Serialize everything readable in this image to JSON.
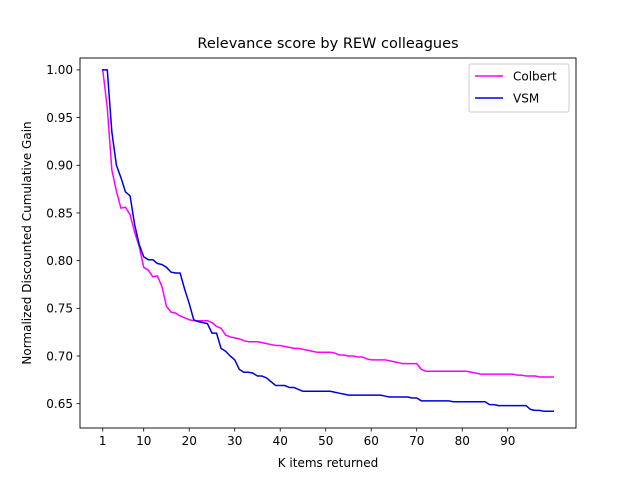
{
  "chart_data": {
    "type": "line",
    "title": "Relevance score by REW colleagues",
    "xlabel": "K items returned",
    "ylabel": "Normalized Discounted Cumulative Gain",
    "xlim": [
      -4,
      105
    ],
    "ylim": [
      0.6245,
      1.0125
    ],
    "x_ticks": [
      1,
      10,
      20,
      30,
      40,
      50,
      60,
      70,
      80,
      90
    ],
    "y_ticks": [
      0.65,
      0.7,
      0.75,
      0.8,
      0.85,
      0.9,
      0.95,
      1.0
    ],
    "y_tick_labels": [
      "0.65",
      "0.70",
      "0.75",
      "0.80",
      "0.85",
      "0.90",
      "0.95",
      "1.00"
    ],
    "grid": false,
    "legend_position": "top-right",
    "series": [
      {
        "name": "Colbert",
        "color": "#ff00ff",
        "points": [
          [
            1,
            1.0
          ],
          [
            2,
            0.96
          ],
          [
            3,
            0.895
          ],
          [
            4,
            0.873
          ],
          [
            5,
            0.855
          ],
          [
            6,
            0.856
          ],
          [
            7,
            0.848
          ],
          [
            8,
            0.83
          ],
          [
            9,
            0.815
          ],
          [
            10,
            0.793
          ],
          [
            11,
            0.79
          ],
          [
            12,
            0.783
          ],
          [
            13,
            0.784
          ],
          [
            14,
            0.773
          ],
          [
            15,
            0.752
          ],
          [
            16,
            0.746
          ],
          [
            17,
            0.745
          ],
          [
            18,
            0.742
          ],
          [
            19,
            0.74
          ],
          [
            20,
            0.738
          ],
          [
            21,
            0.737
          ],
          [
            22,
            0.737
          ],
          [
            23,
            0.737
          ],
          [
            24,
            0.737
          ],
          [
            25,
            0.735
          ],
          [
            26,
            0.731
          ],
          [
            27,
            0.729
          ],
          [
            28,
            0.722
          ],
          [
            29,
            0.72
          ],
          [
            30,
            0.719
          ],
          [
            31,
            0.718
          ],
          [
            32,
            0.716
          ],
          [
            33,
            0.715
          ],
          [
            34,
            0.715
          ],
          [
            35,
            0.715
          ],
          [
            36,
            0.714
          ],
          [
            37,
            0.713
          ],
          [
            38,
            0.712
          ],
          [
            39,
            0.711
          ],
          [
            40,
            0.711
          ],
          [
            41,
            0.71
          ],
          [
            42,
            0.709
          ],
          [
            43,
            0.708
          ],
          [
            44,
            0.708
          ],
          [
            45,
            0.707
          ],
          [
            46,
            0.706
          ],
          [
            47,
            0.705
          ],
          [
            48,
            0.704
          ],
          [
            49,
            0.704
          ],
          [
            50,
            0.704
          ],
          [
            51,
            0.704
          ],
          [
            52,
            0.703
          ],
          [
            53,
            0.701
          ],
          [
            54,
            0.701
          ],
          [
            55,
            0.7
          ],
          [
            56,
            0.7
          ],
          [
            57,
            0.699
          ],
          [
            58,
            0.699
          ],
          [
            59,
            0.697
          ],
          [
            60,
            0.696
          ],
          [
            61,
            0.696
          ],
          [
            62,
            0.696
          ],
          [
            63,
            0.696
          ],
          [
            64,
            0.695
          ],
          [
            65,
            0.694
          ],
          [
            66,
            0.693
          ],
          [
            67,
            0.692
          ],
          [
            68,
            0.692
          ],
          [
            69,
            0.692
          ],
          [
            70,
            0.692
          ],
          [
            71,
            0.686
          ],
          [
            72,
            0.684
          ],
          [
            73,
            0.684
          ],
          [
            74,
            0.684
          ],
          [
            75,
            0.684
          ],
          [
            76,
            0.684
          ],
          [
            77,
            0.684
          ],
          [
            78,
            0.684
          ],
          [
            79,
            0.684
          ],
          [
            80,
            0.684
          ],
          [
            81,
            0.684
          ],
          [
            82,
            0.683
          ],
          [
            83,
            0.682
          ],
          [
            84,
            0.681
          ],
          [
            85,
            0.681
          ],
          [
            86,
            0.681
          ],
          [
            87,
            0.681
          ],
          [
            88,
            0.681
          ],
          [
            89,
            0.681
          ],
          [
            90,
            0.681
          ],
          [
            91,
            0.681
          ],
          [
            92,
            0.68
          ],
          [
            93,
            0.68
          ],
          [
            94,
            0.679
          ],
          [
            95,
            0.679
          ],
          [
            96,
            0.679
          ],
          [
            97,
            0.678
          ],
          [
            98,
            0.678
          ],
          [
            99,
            0.678
          ],
          [
            100,
            0.678
          ]
        ]
      },
      {
        "name": "VSM",
        "color": "#0000dd",
        "points": [
          [
            1,
            1.0
          ],
          [
            2,
            1.0
          ],
          [
            3,
            0.935
          ],
          [
            4,
            0.9
          ],
          [
            5,
            0.887
          ],
          [
            6,
            0.872
          ],
          [
            7,
            0.868
          ],
          [
            8,
            0.838
          ],
          [
            9,
            0.817
          ],
          [
            10,
            0.804
          ],
          [
            11,
            0.801
          ],
          [
            12,
            0.801
          ],
          [
            13,
            0.797
          ],
          [
            14,
            0.796
          ],
          [
            15,
            0.793
          ],
          [
            16,
            0.788
          ],
          [
            17,
            0.787
          ],
          [
            18,
            0.787
          ],
          [
            19,
            0.77
          ],
          [
            20,
            0.755
          ],
          [
            21,
            0.738
          ],
          [
            22,
            0.736
          ],
          [
            23,
            0.735
          ],
          [
            24,
            0.734
          ],
          [
            25,
            0.724
          ],
          [
            26,
            0.724
          ],
          [
            27,
            0.708
          ],
          [
            28,
            0.705
          ],
          [
            29,
            0.7
          ],
          [
            30,
            0.696
          ],
          [
            31,
            0.686
          ],
          [
            32,
            0.683
          ],
          [
            33,
            0.683
          ],
          [
            34,
            0.682
          ],
          [
            35,
            0.679
          ],
          [
            36,
            0.679
          ],
          [
            37,
            0.677
          ],
          [
            38,
            0.673
          ],
          [
            39,
            0.669
          ],
          [
            40,
            0.669
          ],
          [
            41,
            0.669
          ],
          [
            42,
            0.667
          ],
          [
            43,
            0.667
          ],
          [
            44,
            0.665
          ],
          [
            45,
            0.663
          ],
          [
            46,
            0.663
          ],
          [
            47,
            0.663
          ],
          [
            48,
            0.663
          ],
          [
            49,
            0.663
          ],
          [
            50,
            0.663
          ],
          [
            51,
            0.663
          ],
          [
            52,
            0.662
          ],
          [
            53,
            0.661
          ],
          [
            54,
            0.66
          ],
          [
            55,
            0.659
          ],
          [
            56,
            0.659
          ],
          [
            57,
            0.659
          ],
          [
            58,
            0.659
          ],
          [
            59,
            0.659
          ],
          [
            60,
            0.659
          ],
          [
            61,
            0.659
          ],
          [
            62,
            0.659
          ],
          [
            63,
            0.658
          ],
          [
            64,
            0.657
          ],
          [
            65,
            0.657
          ],
          [
            66,
            0.657
          ],
          [
            67,
            0.657
          ],
          [
            68,
            0.657
          ],
          [
            69,
            0.656
          ],
          [
            70,
            0.656
          ],
          [
            71,
            0.653
          ],
          [
            72,
            0.653
          ],
          [
            73,
            0.653
          ],
          [
            74,
            0.653
          ],
          [
            75,
            0.653
          ],
          [
            76,
            0.653
          ],
          [
            77,
            0.653
          ],
          [
            78,
            0.652
          ],
          [
            79,
            0.652
          ],
          [
            80,
            0.652
          ],
          [
            81,
            0.652
          ],
          [
            82,
            0.652
          ],
          [
            83,
            0.652
          ],
          [
            84,
            0.652
          ],
          [
            85,
            0.652
          ],
          [
            86,
            0.649
          ],
          [
            87,
            0.649
          ],
          [
            88,
            0.648
          ],
          [
            89,
            0.648
          ],
          [
            90,
            0.648
          ],
          [
            91,
            0.648
          ],
          [
            92,
            0.648
          ],
          [
            93,
            0.648
          ],
          [
            94,
            0.648
          ],
          [
            95,
            0.644
          ],
          [
            96,
            0.643
          ],
          [
            97,
            0.643
          ],
          [
            98,
            0.642
          ],
          [
            99,
            0.642
          ],
          [
            100,
            0.642
          ]
        ]
      }
    ]
  }
}
